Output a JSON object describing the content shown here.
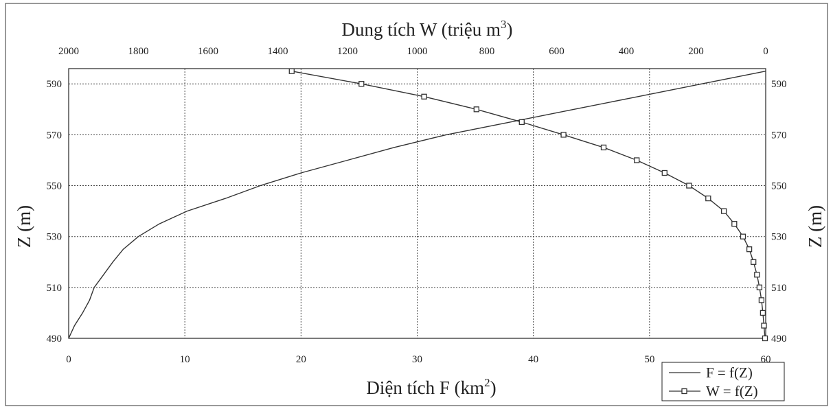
{
  "chart_data": {
    "type": "line",
    "title": "",
    "top_axis_title": "Dung tích W (triệu m",
    "top_axis_title_sup": "3",
    "top_axis_title_end": ")",
    "bottom_axis_title": "Diện tích F (km",
    "bottom_axis_title_sup": "2",
    "bottom_axis_title_end": ")",
    "left_axis_title": "Z (m)",
    "right_axis_title": "Z (m)",
    "x_bottom": {
      "min": 0,
      "max": 60,
      "ticks": [
        "0",
        "10",
        "20",
        "30",
        "40",
        "50",
        "60"
      ]
    },
    "x_top": {
      "min": 2000,
      "max": 0,
      "ticks": [
        "2000",
        "1800",
        "1600",
        "1400",
        "1200",
        "1000",
        "800",
        "600",
        "400",
        "200",
        "0"
      ]
    },
    "y": {
      "min": 490,
      "max": 596,
      "ticks": [
        "490",
        "510",
        "530",
        "550",
        "570",
        "590"
      ]
    },
    "grid": true,
    "legend_position": "bottom-right",
    "series": [
      {
        "name": "F = f(Z)",
        "axis": "bottom",
        "marker": "none",
        "z": [
          490,
          495,
          500,
          505,
          510,
          515,
          520,
          525,
          530,
          535,
          540,
          545,
          550,
          555,
          560,
          565,
          570,
          575,
          580,
          585,
          590,
          595
        ],
        "x": [
          0,
          0.5,
          1.2,
          1.8,
          2.2,
          3.0,
          3.8,
          4.7,
          6.0,
          7.8,
          10.2,
          13.5,
          16.5,
          20.0,
          24.0,
          28.0,
          32.5,
          38.0,
          43.5,
          49.0,
          54.5,
          60.0
        ]
      },
      {
        "name": "W = f(Z)",
        "axis": "top",
        "marker": "square",
        "z": [
          490,
          495,
          500,
          505,
          510,
          515,
          520,
          525,
          530,
          535,
          540,
          545,
          550,
          555,
          560,
          565,
          570,
          575,
          580,
          585,
          590,
          595
        ],
        "x": [
          2,
          5,
          8,
          12,
          18,
          25,
          35,
          47,
          65,
          90,
          120,
          165,
          220,
          290,
          370,
          465,
          580,
          700,
          830,
          980,
          1160,
          1360
        ]
      }
    ]
  },
  "legend": {
    "f_label": "F = f(Z)",
    "w_label": "W = f(Z)"
  }
}
